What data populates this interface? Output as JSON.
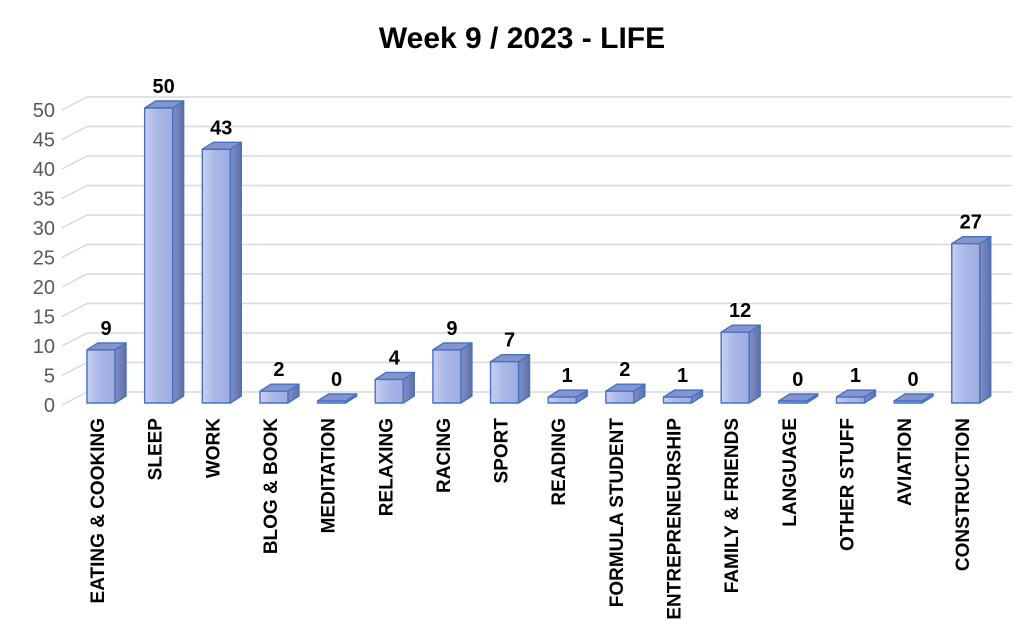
{
  "chart_data": {
    "type": "bar",
    "style": "3d-column",
    "title": "Week 9 / 2023 - LIFE",
    "categories": [
      "EATING & COOKING",
      "SLEEP",
      "WORK",
      "BLOG & BOOK",
      "MEDITATION",
      "RELAXING",
      "RACING",
      "SPORT",
      "READING",
      "FORMULA STUDENT",
      "ENTREPRENEURSHIP",
      "FAMILY & FRIENDS",
      "LANGUAGE",
      "OTHER STUFF",
      "AVIATION",
      "CONSTRUCTION"
    ],
    "values": [
      9,
      50,
      43,
      2,
      0,
      4,
      9,
      7,
      1,
      2,
      1,
      12,
      0,
      1,
      0,
      27
    ],
    "xlabel": "",
    "ylabel": "",
    "ylim": [
      0,
      50
    ],
    "yticks": [
      0,
      5,
      10,
      15,
      20,
      25,
      30,
      35,
      40,
      45,
      50
    ],
    "grid": true,
    "legend": false,
    "data_labels": true,
    "colors": {
      "background": "#ffffff",
      "text": "#000000",
      "axis_label": "#595959",
      "gridline": "#d9d9d9",
      "bar_border": "#4472c4",
      "bar_front_light": "#c6d0f1",
      "bar_front": "#a9b8e6",
      "bar_front_dark": "#9dade0",
      "bar_side_light": "#8290c6",
      "bar_side_dark": "#5f6fa8",
      "bar_top": "#8694cc"
    }
  }
}
